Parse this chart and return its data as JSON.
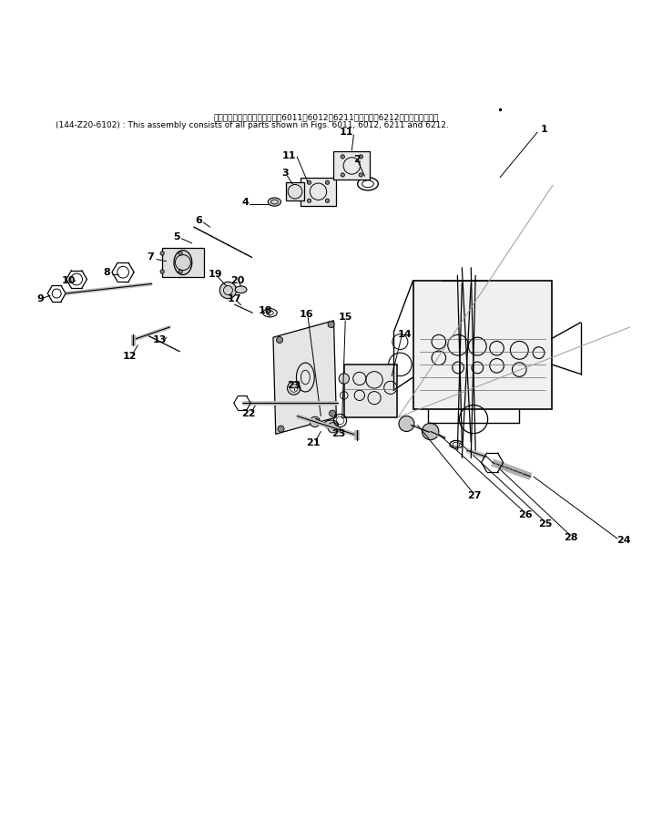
{
  "bg_color": "#ffffff",
  "line_color": "#000000",
  "text_color": "#000000",
  "figsize": [
    7.16,
    9.13
  ],
  "dpi": 100,
  "header_line1": "このアセンブリの構成部品は囶6011，6012，6211図および囶6212図まで含みます．",
  "header_line2": "(144-Z20-6102) : This assembly consists of all parts shown in Figs. 6011, 6012, 6211 and 6212."
}
